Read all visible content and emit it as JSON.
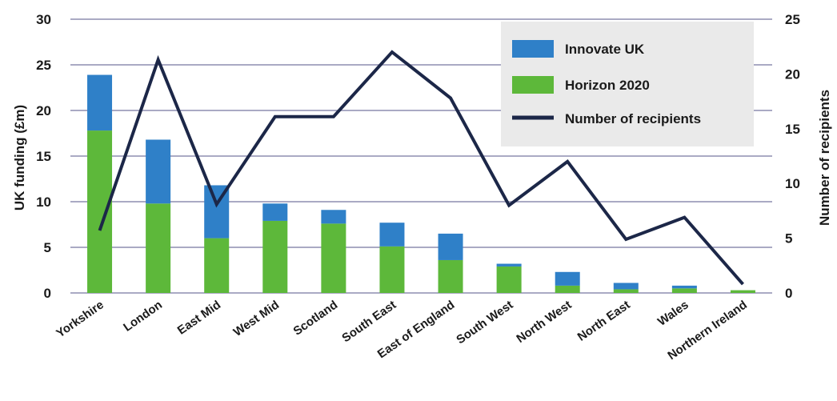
{
  "chart_data": {
    "type": "bar",
    "stacked": true,
    "categories": [
      "Yorkshire",
      "London",
      "East Mid",
      "West Mid",
      "Scotland",
      "South East",
      "East of England",
      "South West",
      "North West",
      "North East",
      "Wales",
      "Northern Ireland"
    ],
    "series": [
      {
        "name": "Horizon 2020",
        "kind": "bar",
        "axis": "left",
        "color": "#5db83a",
        "values": [
          17.8,
          9.8,
          6.0,
          7.9,
          7.6,
          5.1,
          3.6,
          2.9,
          0.8,
          0.4,
          0.5,
          0.3
        ]
      },
      {
        "name": "Innovate UK",
        "kind": "bar",
        "axis": "left",
        "color": "#2f80c8",
        "values": [
          6.1,
          7.0,
          5.8,
          1.9,
          1.5,
          2.6,
          2.9,
          0.3,
          1.5,
          0.7,
          0.3,
          0.0
        ]
      },
      {
        "name": "Number of recipients",
        "kind": "line",
        "axis": "right",
        "color": "#1c2748",
        "values": [
          5.7,
          21.3,
          8.1,
          16.1,
          16.1,
          22.0,
          17.8,
          8.0,
          12.0,
          4.9,
          6.9,
          0.8
        ]
      }
    ],
    "legend": [
      "Innovate UK",
      "Horizon 2020",
      "Number of recipients"
    ],
    "legend_position": "top-right",
    "ylabel": "UK funding (£m)",
    "y2label": "Number of recipients",
    "ylim": [
      0,
      30
    ],
    "y2lim": [
      0,
      25
    ],
    "yticks": [
      0,
      5,
      10,
      15,
      20,
      25,
      30
    ],
    "y2ticks": [
      0,
      5,
      10,
      15,
      20,
      25
    ],
    "grid": true,
    "colors": {
      "grid": "#8e8eb0",
      "legend_bg": "#eaeaea"
    }
  }
}
